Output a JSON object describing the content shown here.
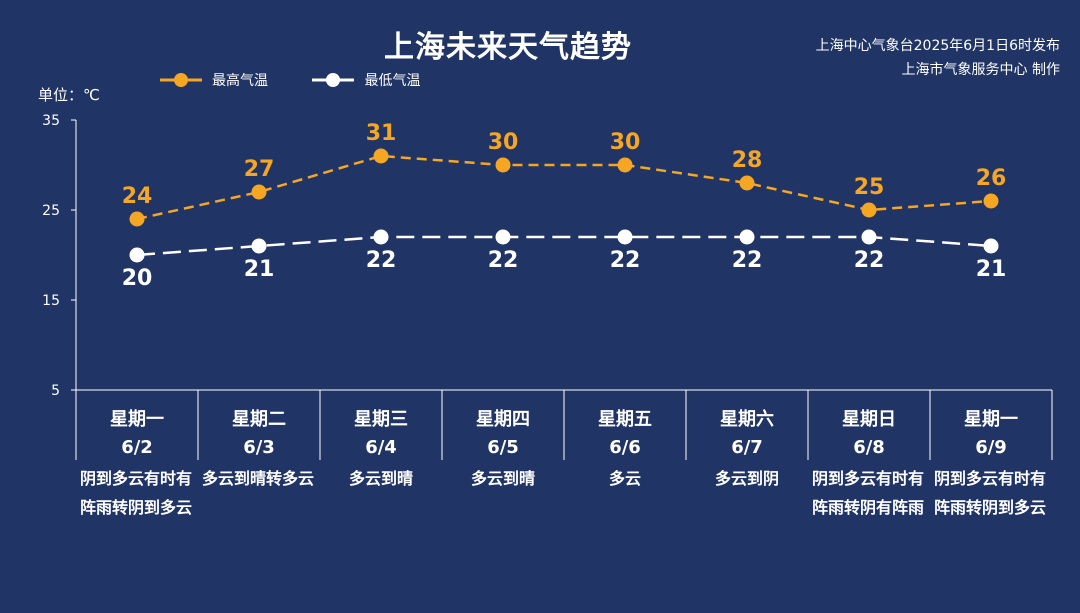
{
  "header": {
    "title": "上海未来天气趋势",
    "source_line1": "上海中心气象台2025年6月1日6时发布",
    "source_line2": "上海市气象服务中心 制作"
  },
  "unit_label": "单位：℃",
  "colors": {
    "background": "#213466",
    "high": "#F5A623",
    "low": "#FFFFFF"
  },
  "chart_data": {
    "type": "line",
    "categories": [
      "星期一",
      "星期二",
      "星期三",
      "星期四",
      "星期五",
      "星期六",
      "星期日",
      "星期一"
    ],
    "dates": [
      "6/2",
      "6/3",
      "6/4",
      "6/5",
      "6/6",
      "6/7",
      "6/8",
      "6/9"
    ],
    "series": [
      {
        "name": "最高气温",
        "values": [
          24,
          27,
          31,
          30,
          30,
          28,
          25,
          26
        ]
      },
      {
        "name": "最低气温",
        "values": [
          20,
          21,
          22,
          22,
          22,
          22,
          22,
          21
        ]
      }
    ],
    "yticks": [
      5,
      15,
      25,
      35
    ],
    "ylim": [
      5,
      35
    ],
    "legend_position": "top-left",
    "grid": false
  },
  "descriptions": [
    "阴到多云有时有阵雨转阴到多云",
    "多云到晴转多云",
    "多云到晴",
    "多云到晴",
    "多云",
    "多云到阴",
    "阴到多云有时有阵雨转阴有阵雨",
    "阴到多云有时有阵雨转阴到多云"
  ]
}
